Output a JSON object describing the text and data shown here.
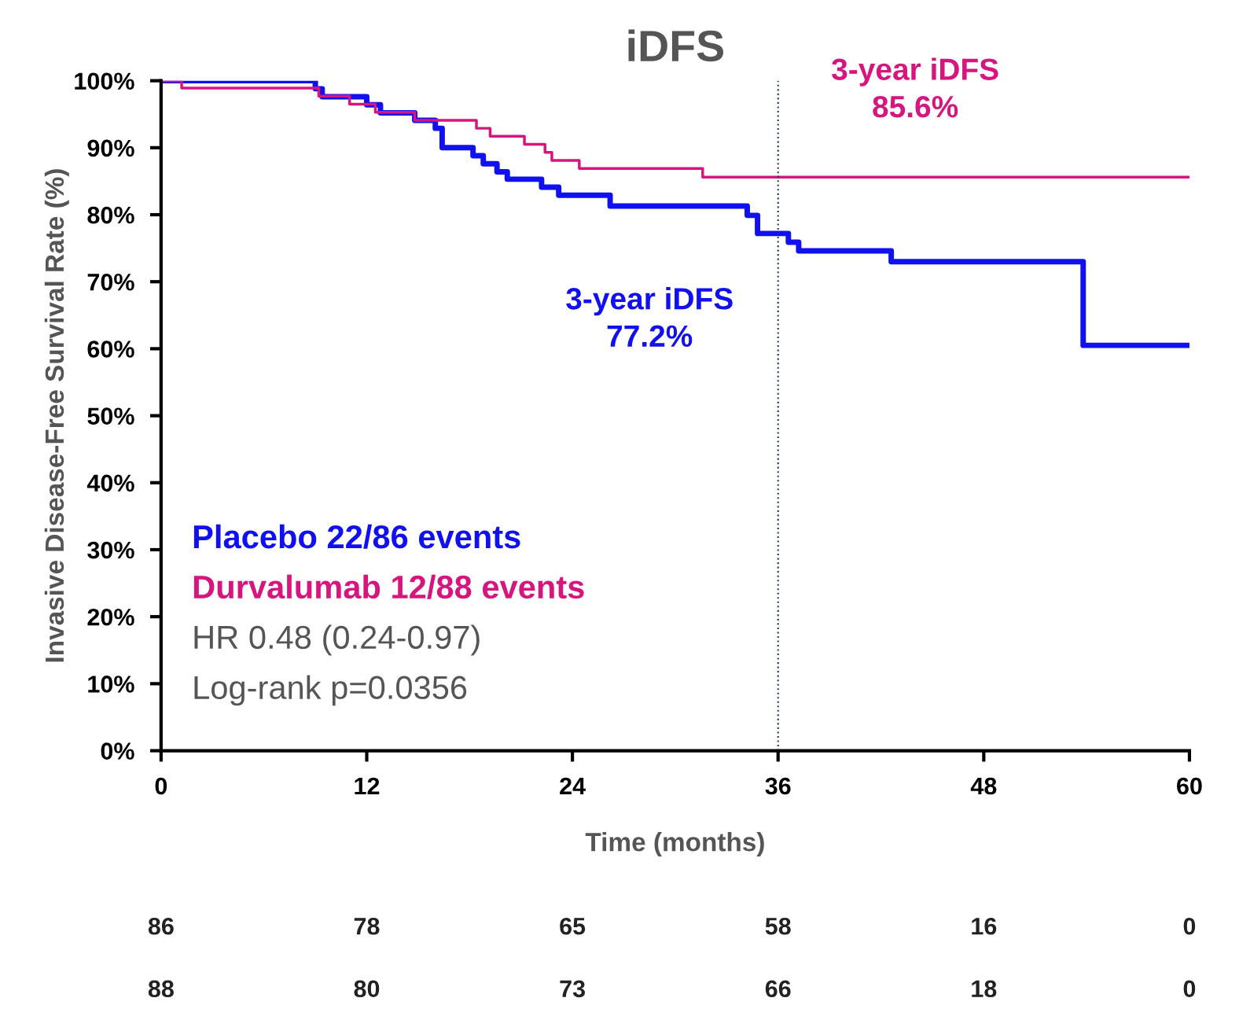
{
  "chart_data": {
    "type": "step",
    "title": "iDFS",
    "xlabel": "Time (months)",
    "ylabel": "Invasive Disease-Free Survival Rate (%)",
    "xlim": [
      0,
      60
    ],
    "xticks": [
      0,
      12,
      24,
      36,
      48,
      60
    ],
    "ylim": [
      0,
      100
    ],
    "yticks": [
      {
        "value": 0,
        "label": "0%"
      },
      {
        "value": 10,
        "label": "10%"
      },
      {
        "value": 20,
        "label": "20%"
      },
      {
        "value": 30,
        "label": "30%"
      },
      {
        "value": 40,
        "label": "40%"
      },
      {
        "value": 50,
        "label": "50%"
      },
      {
        "value": 60,
        "label": "60%"
      },
      {
        "value": 70,
        "label": "70%"
      },
      {
        "value": 80,
        "label": "80%"
      },
      {
        "value": 90,
        "label": "90%"
      },
      {
        "value": 100,
        "label": "100%"
      }
    ],
    "grid": false,
    "legend": "bottom left",
    "series": [
      {
        "name": "Placebo 22/86 events",
        "color": "#1010f0",
        "x": [
          0,
          9,
          9.4,
          12,
          12.8,
          14.8,
          16,
          16.4,
          18.2,
          18.8,
          19.6,
          20.2,
          22.2,
          23.2,
          26.2,
          34.2,
          34.8,
          36.6,
          37.2,
          42.6,
          53.8,
          60
        ],
        "values": [
          100,
          98.8,
          97.6,
          96.4,
          95.2,
          94.1,
          92.9,
          90.0,
          88.8,
          87.6,
          86.4,
          85.3,
          84.1,
          82.9,
          81.3,
          79.9,
          77.2,
          75.9,
          74.6,
          73.0,
          60.5,
          60.5
        ]
      },
      {
        "name": "Durvalumab 12/88 events",
        "color": "#d6157f",
        "x": [
          0,
          1.2,
          9.2,
          11,
          12.5,
          14.8,
          18.4,
          19.2,
          21.2,
          22.4,
          22.8,
          24.4,
          31.6,
          60
        ],
        "values": [
          100,
          98.9,
          97.7,
          96.5,
          95.3,
          94.1,
          92.9,
          91.7,
          90.5,
          89.3,
          88.1,
          86.9,
          85.6,
          85.6
        ]
      }
    ],
    "ref_lines": [
      {
        "axis": "x",
        "value": 36,
        "label": null,
        "color": "#1f3a5a",
        "line_style": "dotted"
      }
    ],
    "annotations": [
      {
        "text": "3-year iDFS\n77.2%",
        "x": 36,
        "y": 77.2
      },
      {
        "text": "3-year iDFS\n85.6%",
        "x": 36,
        "y": 85.6
      },
      "HR 0.48 (0.24-0.97)",
      "Log-rank p=0.0356",
      "86",
      "78",
      "65",
      "58",
      "16",
      "0",
      "88",
      "80",
      "73",
      "66",
      "18",
      "0"
    ]
  }
}
